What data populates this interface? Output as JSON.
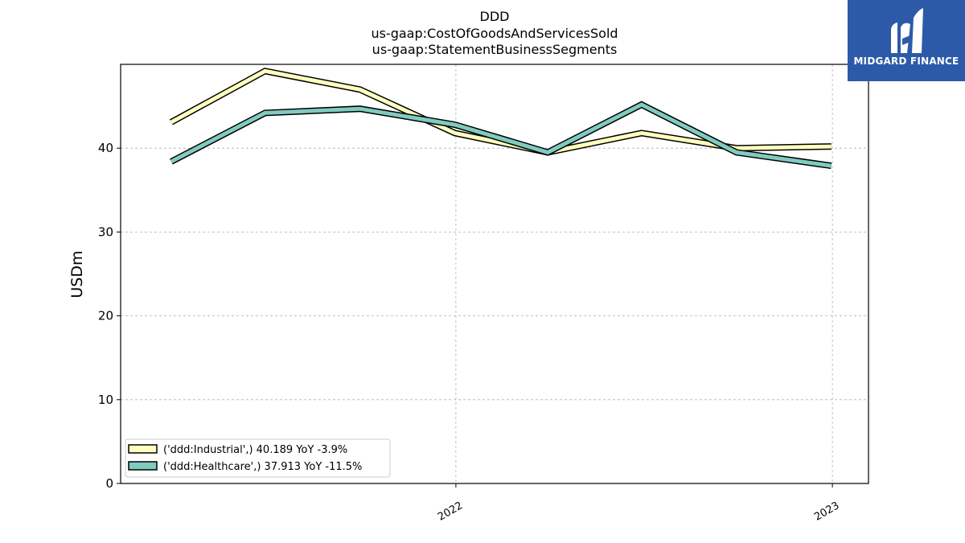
{
  "header": {
    "title_line1": "DDD",
    "title_line2": "us-gaap:CostOfGoodsAndServicesSold",
    "title_line3": "us-gaap:StatementBusinessSegments"
  },
  "logo": {
    "text": "MIDGARD FINANCE",
    "icon": "midgard-logo-icon",
    "background": "#2d5aa8"
  },
  "chart_data": {
    "type": "line",
    "title": "DDD\nus-gaap:CostOfGoodsAndServicesSold\nus-gaap:StatementBusinessSegments",
    "xlabel": "",
    "ylabel": "USDm",
    "x": [
      "2021-03-31",
      "2021-06-30",
      "2021-09-30",
      "2021-12-31",
      "2022-03-31",
      "2022-06-30",
      "2022-09-30",
      "2022-12-31"
    ],
    "x_range": [
      "2021-02-10",
      "2023-02-05"
    ],
    "ylim": [
      0,
      50
    ],
    "yticks": [
      0,
      10,
      20,
      30,
      40
    ],
    "xticks": [
      {
        "value": "2022-01-01",
        "label": "2022"
      },
      {
        "value": "2023-01-01",
        "label": "2023"
      }
    ],
    "grid": true,
    "legend_position": "lower-left",
    "series": [
      {
        "name": "('ddd:Industrial',) 40.189 YoY -3.9%",
        "color": "#ffffbf",
        "values": [
          43.1,
          49.2,
          47.0,
          41.8,
          39.5,
          41.8,
          40.0,
          40.2
        ]
      },
      {
        "name": "('ddd:Healthcare',) 37.913 YoY -11.5%",
        "color": "#80cbbf",
        "values": [
          38.4,
          44.2,
          44.7,
          42.8,
          39.5,
          45.2,
          39.5,
          37.9
        ]
      }
    ]
  }
}
